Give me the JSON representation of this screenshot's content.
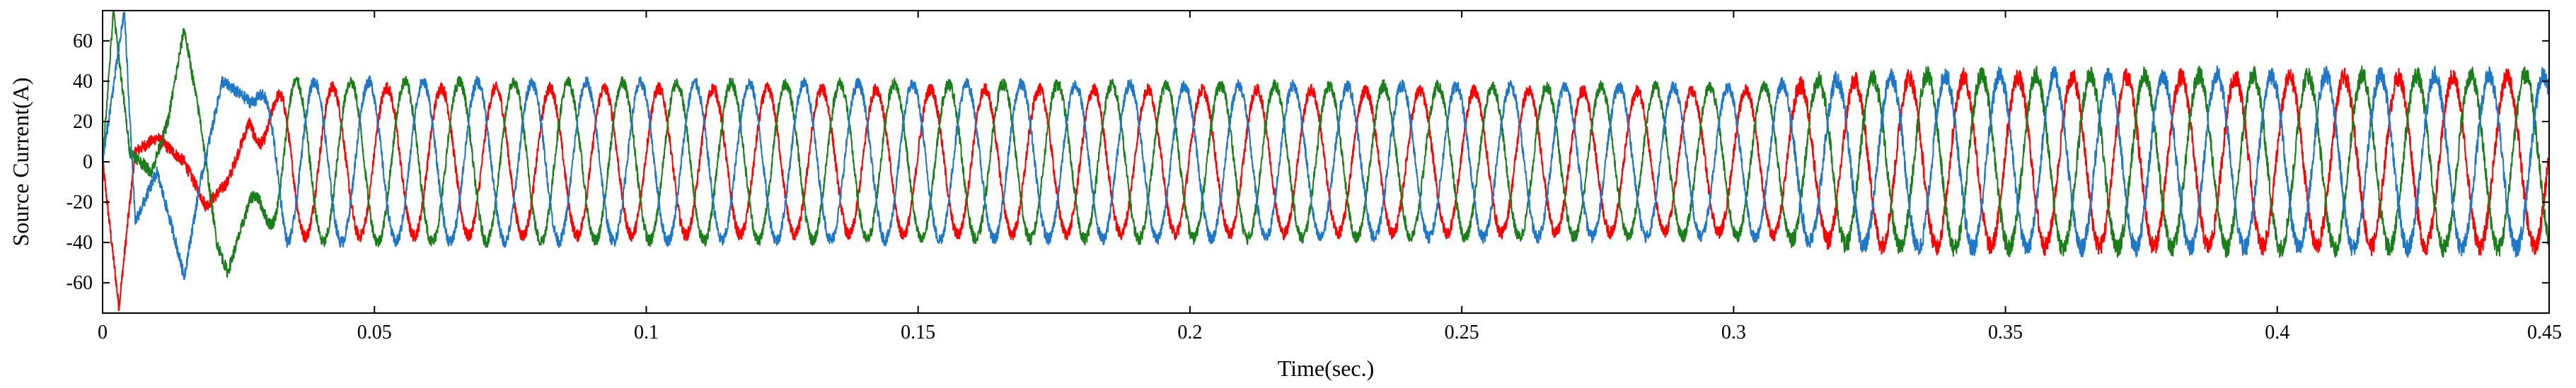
{
  "chart_data": {
    "type": "line",
    "title": "",
    "xlabel": "Time(sec.)",
    "ylabel": "Source Current(A)",
    "xlim": [
      0,
      0.45
    ],
    "ylim": [
      -75,
      75
    ],
    "x_ticks": [
      0,
      0.05,
      0.1,
      0.15,
      0.2,
      0.25,
      0.3,
      0.35,
      0.4,
      0.45
    ],
    "x_tick_labels": [
      "0",
      "0.05",
      "0.1",
      "0.15",
      "0.2",
      "0.25",
      "0.3",
      "0.35",
      "0.4",
      "0.45"
    ],
    "y_ticks": [
      60,
      40,
      20,
      0,
      -20,
      -40,
      -60
    ],
    "y_tick_labels": [
      "60",
      "40",
      "20",
      "0",
      "-20",
      "-40",
      "-60"
    ],
    "grid": false,
    "legend": "none",
    "frequency_hz": 100,
    "series": [
      {
        "color": "#ff0000",
        "steady_amplitude": [
          [
            0.03,
            37
          ],
          [
            0.3,
            35
          ],
          [
            0.33,
            42
          ],
          [
            0.45,
            42
          ]
        ],
        "phase_deg": 0,
        "startup_points": [
          [
            0,
            0
          ],
          [
            0.003,
            -72
          ],
          [
            0.006,
            5
          ],
          [
            0.01,
            12
          ],
          [
            0.015,
            0
          ],
          [
            0.019,
            -22
          ],
          [
            0.023,
            -10
          ],
          [
            0.027,
            20
          ]
        ]
      },
      {
        "color": "#1a7f1a",
        "steady_amplitude": [
          [
            0.03,
            40
          ],
          [
            0.3,
            37
          ],
          [
            0.33,
            43
          ],
          [
            0.45,
            43
          ]
        ],
        "phase_deg": 120,
        "startup_points": [
          [
            0,
            0
          ],
          [
            0.002,
            75
          ],
          [
            0.005,
            5
          ],
          [
            0.009,
            -5
          ],
          [
            0.012,
            20
          ],
          [
            0.015,
            66
          ],
          [
            0.018,
            20
          ],
          [
            0.021,
            -40
          ],
          [
            0.023,
            -55
          ],
          [
            0.027,
            -20
          ]
        ]
      },
      {
        "color": "#1f77c8",
        "steady_amplitude": [
          [
            0.03,
            40
          ],
          [
            0.3,
            37
          ],
          [
            0.33,
            43
          ],
          [
            0.45,
            43
          ]
        ],
        "phase_deg": 240,
        "startup_points": [
          [
            0,
            0
          ],
          [
            0.004,
            75
          ],
          [
            0.006,
            -30
          ],
          [
            0.01,
            -5
          ],
          [
            0.013,
            -35
          ],
          [
            0.015,
            -57
          ],
          [
            0.018,
            -10
          ],
          [
            0.022,
            40
          ],
          [
            0.027,
            30
          ]
        ]
      }
    ]
  }
}
